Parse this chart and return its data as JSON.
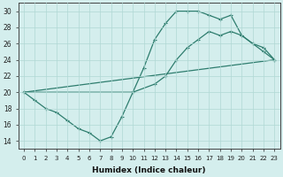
{
  "line1_x": [
    0,
    1,
    2,
    3,
    4,
    5,
    6,
    7,
    8,
    9,
    10,
    11,
    12,
    13,
    14,
    15,
    16,
    17,
    18,
    19,
    20,
    21,
    22,
    23
  ],
  "line1_y": [
    20,
    19,
    18,
    17.5,
    16.5,
    15.5,
    15,
    14,
    14.5,
    17,
    20,
    23,
    26.5,
    28.5,
    30,
    30,
    30,
    29.5,
    29,
    29.5,
    27,
    26,
    25,
    24
  ],
  "line2_x": [
    0,
    23
  ],
  "line2_y": [
    20,
    24
  ],
  "line3_x": [
    0,
    10,
    12,
    13,
    14,
    15,
    16,
    17,
    18,
    19,
    20,
    21,
    22,
    23
  ],
  "line3_y": [
    20,
    20,
    21,
    22,
    24,
    25.5,
    26.5,
    27.5,
    27,
    27.5,
    27,
    26,
    25.5,
    24
  ],
  "color": "#2e7d6e",
  "bg_color": "#d4eeed",
  "grid_color": "#b0d8d4",
  "xlabel": "Humidex (Indice chaleur)",
  "xlim": [
    -0.5,
    23.5
  ],
  "ylim": [
    13,
    31
  ],
  "yticks": [
    14,
    16,
    18,
    20,
    22,
    24,
    26,
    28,
    30
  ],
  "xticks": [
    0,
    1,
    2,
    3,
    4,
    5,
    6,
    7,
    8,
    9,
    10,
    11,
    12,
    13,
    14,
    15,
    16,
    17,
    18,
    19,
    20,
    21,
    22,
    23
  ]
}
